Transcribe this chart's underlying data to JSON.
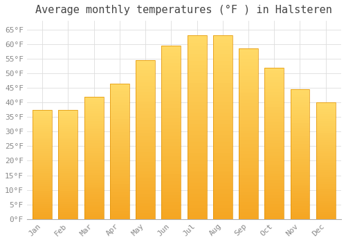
{
  "title": "Average monthly temperatures (°F ) in Halsteren",
  "months": [
    "Jan",
    "Feb",
    "Mar",
    "Apr",
    "May",
    "Jun",
    "Jul",
    "Aug",
    "Sep",
    "Oct",
    "Nov",
    "Dec"
  ],
  "values": [
    37.5,
    37.5,
    42.0,
    46.5,
    54.5,
    59.5,
    63.0,
    63.0,
    58.5,
    52.0,
    44.5,
    40.0
  ],
  "bar_color_bottom": "#F5A623",
  "bar_color_top": "#FFD966",
  "bar_edge_color": "#E09000",
  "background_color": "#FFFFFF",
  "grid_color": "#DDDDDD",
  "ylim": [
    0,
    68
  ],
  "title_fontsize": 11,
  "tick_fontsize": 8,
  "font_family": "monospace",
  "tick_color": "#888888",
  "title_color": "#444444"
}
